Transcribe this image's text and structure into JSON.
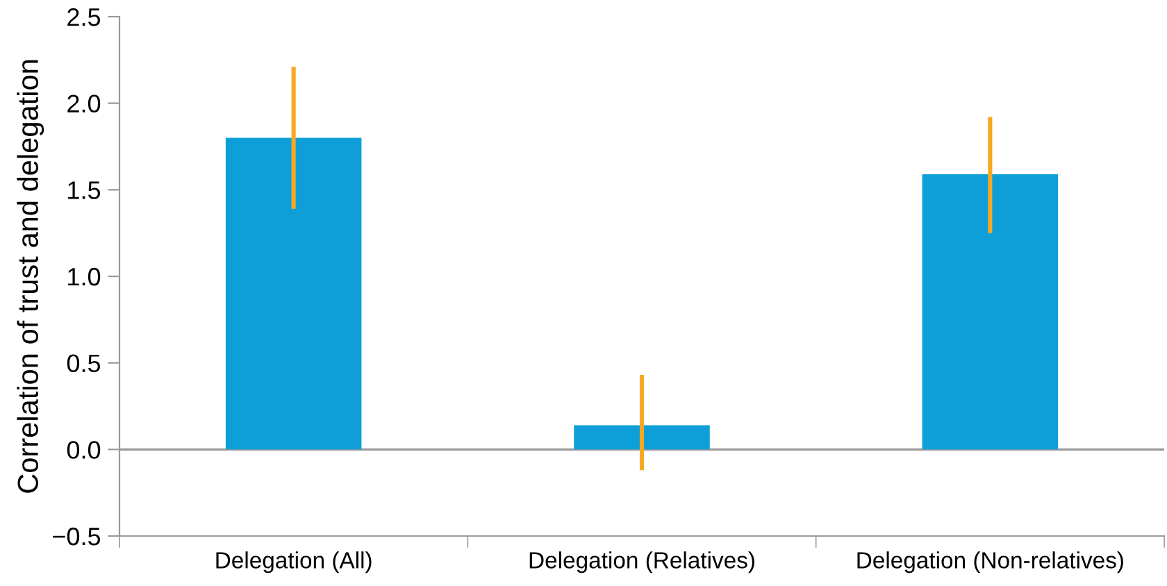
{
  "chart_data": {
    "type": "bar",
    "ylabel": "Correlation of trust and delegation",
    "categories": [
      "Delegation (All)",
      "Delegation (Relatives)",
      "Delegation (Non-relatives)"
    ],
    "values": [
      1.8,
      0.14,
      1.59
    ],
    "errors": [
      [
        1.39,
        2.21
      ],
      [
        -0.12,
        0.43
      ],
      [
        1.25,
        1.92
      ]
    ],
    "color": "#0e9fd8",
    "ylim": [
      -0.5,
      2.5
    ],
    "yticks": [
      {
        "value": -0.5,
        "label": "−0.5"
      },
      {
        "value": 0,
        "label": "0.0"
      },
      {
        "value": 0.5,
        "label": "0.5"
      },
      {
        "value": 1,
        "label": "1.0"
      },
      {
        "value": 1.5,
        "label": "1.5"
      },
      {
        "value": 2,
        "label": "2.0"
      },
      {
        "value": 2.5,
        "label": "2.5"
      }
    ],
    "ref_lines": [
      {
        "axis": "y",
        "value": 0,
        "color": "#9a9a9a"
      }
    ],
    "grid": false,
    "legend": false
  }
}
